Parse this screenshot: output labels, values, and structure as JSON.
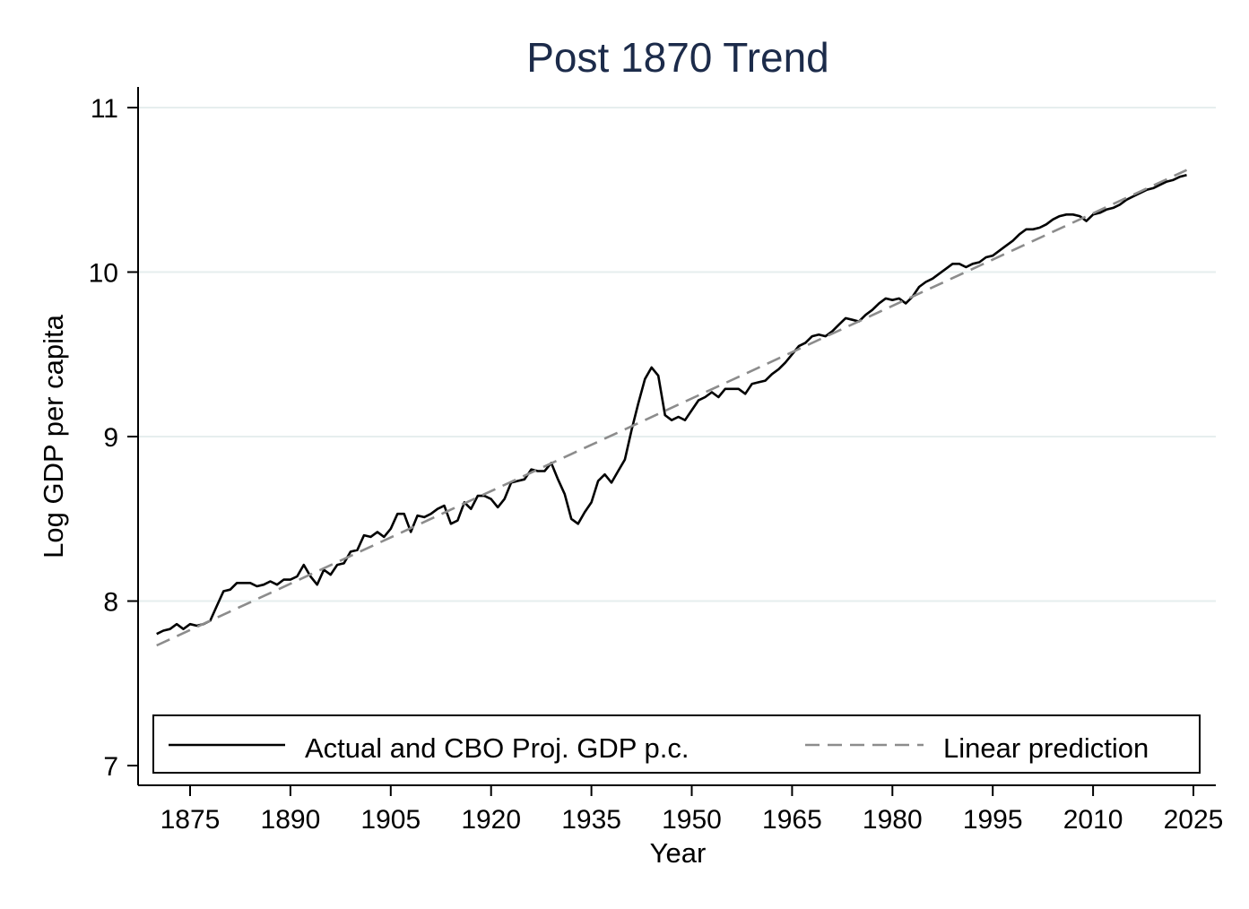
{
  "chart_data": {
    "type": "line",
    "title": "Post 1870 Trend",
    "xlabel": "Year",
    "ylabel": "Log GDP per capita",
    "xlim": [
      1870,
      2025
    ],
    "ylim": [
      7,
      11.1
    ],
    "x_ticks": [
      1875,
      1890,
      1905,
      1920,
      1935,
      1950,
      1965,
      1980,
      1995,
      2010,
      2025
    ],
    "y_ticks": [
      7,
      8,
      9,
      10,
      11
    ],
    "grid": true,
    "legend_position": "bottom",
    "series": [
      {
        "name": "Actual and CBO Proj. GDP p.c.",
        "color": "#000000",
        "style": "solid",
        "points": [
          [
            1870,
            7.8
          ],
          [
            1871,
            7.82
          ],
          [
            1872,
            7.83
          ],
          [
            1873,
            7.86
          ],
          [
            1874,
            7.83
          ],
          [
            1875,
            7.86
          ],
          [
            1876,
            7.85
          ],
          [
            1877,
            7.86
          ],
          [
            1878,
            7.88
          ],
          [
            1879,
            7.97
          ],
          [
            1880,
            8.06
          ],
          [
            1881,
            8.07
          ],
          [
            1882,
            8.11
          ],
          [
            1883,
            8.11
          ],
          [
            1884,
            8.11
          ],
          [
            1885,
            8.09
          ],
          [
            1886,
            8.1
          ],
          [
            1887,
            8.12
          ],
          [
            1888,
            8.1
          ],
          [
            1889,
            8.13
          ],
          [
            1890,
            8.13
          ],
          [
            1891,
            8.15
          ],
          [
            1892,
            8.22
          ],
          [
            1893,
            8.15
          ],
          [
            1894,
            8.1
          ],
          [
            1895,
            8.19
          ],
          [
            1896,
            8.16
          ],
          [
            1897,
            8.22
          ],
          [
            1898,
            8.23
          ],
          [
            1899,
            8.3
          ],
          [
            1900,
            8.31
          ],
          [
            1901,
            8.4
          ],
          [
            1902,
            8.39
          ],
          [
            1903,
            8.42
          ],
          [
            1904,
            8.39
          ],
          [
            1905,
            8.44
          ],
          [
            1906,
            8.53
          ],
          [
            1907,
            8.53
          ],
          [
            1908,
            8.42
          ],
          [
            1909,
            8.52
          ],
          [
            1910,
            8.51
          ],
          [
            1911,
            8.53
          ],
          [
            1912,
            8.56
          ],
          [
            1913,
            8.58
          ],
          [
            1914,
            8.47
          ],
          [
            1915,
            8.49
          ],
          [
            1916,
            8.6
          ],
          [
            1917,
            8.56
          ],
          [
            1918,
            8.64
          ],
          [
            1919,
            8.64
          ],
          [
            1920,
            8.62
          ],
          [
            1921,
            8.57
          ],
          [
            1922,
            8.62
          ],
          [
            1923,
            8.72
          ],
          [
            1924,
            8.73
          ],
          [
            1925,
            8.74
          ],
          [
            1926,
            8.8
          ],
          [
            1927,
            8.79
          ],
          [
            1928,
            8.79
          ],
          [
            1929,
            8.84
          ],
          [
            1930,
            8.74
          ],
          [
            1931,
            8.65
          ],
          [
            1932,
            8.5
          ],
          [
            1933,
            8.47
          ],
          [
            1934,
            8.54
          ],
          [
            1935,
            8.6
          ],
          [
            1936,
            8.73
          ],
          [
            1937,
            8.77
          ],
          [
            1938,
            8.72
          ],
          [
            1939,
            8.79
          ],
          [
            1940,
            8.86
          ],
          [
            1941,
            9.04
          ],
          [
            1942,
            9.2
          ],
          [
            1943,
            9.35
          ],
          [
            1944,
            9.42
          ],
          [
            1945,
            9.37
          ],
          [
            1946,
            9.13
          ],
          [
            1947,
            9.1
          ],
          [
            1948,
            9.12
          ],
          [
            1949,
            9.1
          ],
          [
            1950,
            9.16
          ],
          [
            1951,
            9.22
          ],
          [
            1952,
            9.24
          ],
          [
            1953,
            9.27
          ],
          [
            1954,
            9.24
          ],
          [
            1955,
            9.29
          ],
          [
            1956,
            9.29
          ],
          [
            1957,
            9.29
          ],
          [
            1958,
            9.26
          ],
          [
            1959,
            9.32
          ],
          [
            1960,
            9.33
          ],
          [
            1961,
            9.34
          ],
          [
            1962,
            9.38
          ],
          [
            1963,
            9.41
          ],
          [
            1964,
            9.45
          ],
          [
            1965,
            9.5
          ],
          [
            1966,
            9.55
          ],
          [
            1967,
            9.57
          ],
          [
            1968,
            9.61
          ],
          [
            1969,
            9.62
          ],
          [
            1970,
            9.61
          ],
          [
            1971,
            9.64
          ],
          [
            1972,
            9.68
          ],
          [
            1973,
            9.72
          ],
          [
            1974,
            9.71
          ],
          [
            1975,
            9.7
          ],
          [
            1976,
            9.74
          ],
          [
            1977,
            9.77
          ],
          [
            1978,
            9.81
          ],
          [
            1979,
            9.84
          ],
          [
            1980,
            9.83
          ],
          [
            1981,
            9.84
          ],
          [
            1982,
            9.81
          ],
          [
            1983,
            9.85
          ],
          [
            1984,
            9.91
          ],
          [
            1985,
            9.94
          ],
          [
            1986,
            9.96
          ],
          [
            1987,
            9.99
          ],
          [
            1988,
            10.02
          ],
          [
            1989,
            10.05
          ],
          [
            1990,
            10.05
          ],
          [
            1991,
            10.03
          ],
          [
            1992,
            10.05
          ],
          [
            1993,
            10.06
          ],
          [
            1994,
            10.09
          ],
          [
            1995,
            10.1
          ],
          [
            1996,
            10.13
          ],
          [
            1997,
            10.16
          ],
          [
            1998,
            10.19
          ],
          [
            1999,
            10.23
          ],
          [
            2000,
            10.26
          ],
          [
            2001,
            10.26
          ],
          [
            2002,
            10.27
          ],
          [
            2003,
            10.29
          ],
          [
            2004,
            10.32
          ],
          [
            2005,
            10.34
          ],
          [
            2006,
            10.35
          ],
          [
            2007,
            10.35
          ],
          [
            2008,
            10.34
          ],
          [
            2009,
            10.31
          ],
          [
            2010,
            10.35
          ],
          [
            2011,
            10.36
          ],
          [
            2012,
            10.38
          ],
          [
            2013,
            10.39
          ],
          [
            2014,
            10.41
          ],
          [
            2015,
            10.44
          ],
          [
            2016,
            10.46
          ],
          [
            2017,
            10.48
          ],
          [
            2018,
            10.5
          ],
          [
            2019,
            10.51
          ],
          [
            2020,
            10.53
          ],
          [
            2021,
            10.55
          ],
          [
            2022,
            10.56
          ],
          [
            2023,
            10.58
          ],
          [
            2024,
            10.59
          ]
        ]
      },
      {
        "name": "Linear prediction",
        "color": "#8c8c8c",
        "style": "dashed",
        "points": [
          [
            1870,
            7.73
          ],
          [
            2024,
            10.62
          ]
        ]
      }
    ]
  }
}
